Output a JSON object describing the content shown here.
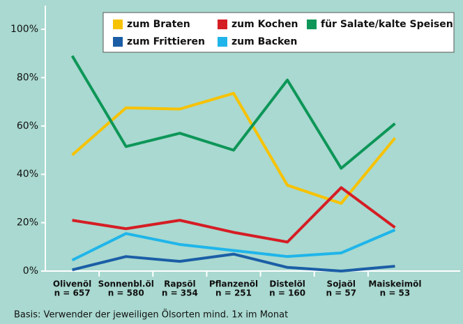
{
  "chart_data": {
    "type": "line",
    "categories": [
      [
        "Olivenöl",
        "n = 657"
      ],
      [
        "Sonnenbl.öl",
        "n = 580"
      ],
      [
        "Rapsöl",
        "n = 354"
      ],
      [
        "Pflanzenöl",
        "n = 251"
      ],
      [
        "Distelöl",
        "n = 160"
      ],
      [
        "Sojaöl",
        "n = 57"
      ],
      [
        "Maiskeimöl",
        "n = 53"
      ]
    ],
    "series": [
      {
        "name": "zum Braten",
        "color": "#f7c200",
        "values": [
          48,
          67.5,
          67,
          73.5,
          35.5,
          28,
          55
        ]
      },
      {
        "name": "zum Kochen",
        "color": "#d51d24",
        "values": [
          21,
          17.5,
          21,
          16,
          12,
          34.5,
          18
        ]
      },
      {
        "name": "für Salate/kalte Speisen",
        "color": "#0d9658",
        "values": [
          89,
          51.5,
          57,
          50,
          79,
          42.5,
          61
        ]
      },
      {
        "name": "zum Frittieren",
        "color": "#1b5ea6",
        "values": [
          0.5,
          6,
          4,
          7,
          1.5,
          0,
          2
        ]
      },
      {
        "name": "zum Backen",
        "color": "#1fb5ea",
        "values": [
          4.5,
          15.5,
          11,
          8.5,
          6,
          7.5,
          17
        ]
      }
    ],
    "ylim": [
      0,
      100
    ],
    "yticks": [
      {
        "value": 0,
        "label": "0%"
      },
      {
        "value": 20,
        "label": "20%"
      },
      {
        "value": 40,
        "label": "40%"
      },
      {
        "value": 60,
        "label": "60%"
      },
      {
        "value": 80,
        "label": "80%"
      },
      {
        "value": 100,
        "label": "100%"
      }
    ],
    "legend": "top",
    "note": "Basis: Verwender der jeweiligen Ölsorten mind. 1x im Monat"
  }
}
